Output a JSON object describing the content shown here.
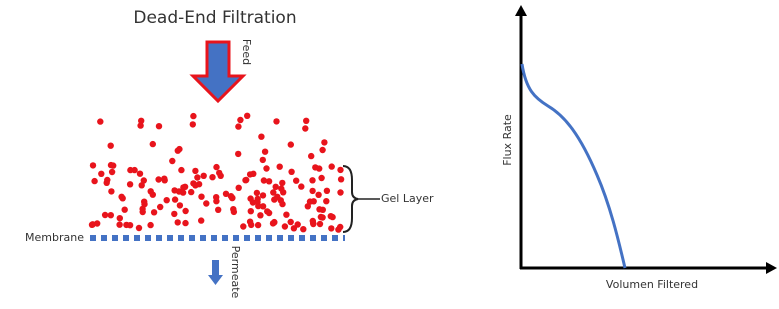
{
  "left_diagram": {
    "title": "Dead-End Filtration",
    "feed_label": "Feed",
    "gel_layer_label": "Gel Layer",
    "membrane_label": "Membrane",
    "permeate_label": "Permeate"
  },
  "right_diagram": {
    "y_axis_label": "Flux Rate",
    "x_axis_label": "Volumen Filtered"
  }
}
